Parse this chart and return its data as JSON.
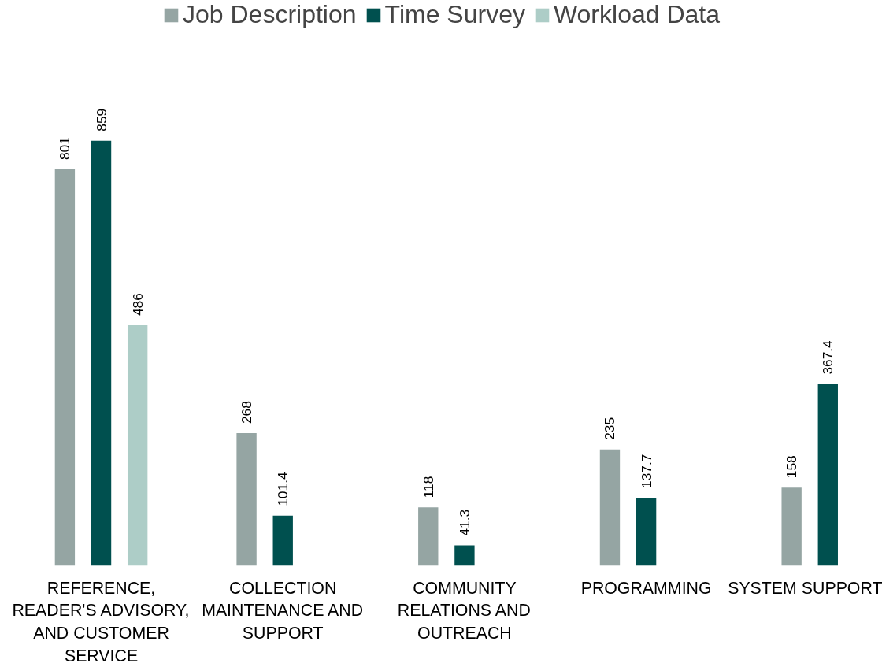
{
  "chart_data": {
    "type": "bar",
    "categories": [
      "REFERENCE, READER'S ADVISORY, AND CUSTOMER SERVICE",
      "COLLECTION MAINTENANCE AND SUPPORT",
      "COMMUNITY RELATIONS AND OUTREACH",
      "PROGRAMMING",
      "SYSTEM SUPPORT"
    ],
    "series": [
      {
        "name": "Job Description",
        "color": "#95a5a3",
        "values": [
          801,
          268,
          118,
          235,
          158
        ]
      },
      {
        "name": "Time Survey",
        "color": "#00504f",
        "values": [
          859,
          101.4,
          41.3,
          137.7,
          367.4
        ]
      },
      {
        "name": "Workload Data",
        "color": "#adcdc7",
        "values": [
          486,
          null,
          null,
          null,
          null
        ]
      }
    ],
    "data_labels": true,
    "legend": "top",
    "grid": false
  }
}
